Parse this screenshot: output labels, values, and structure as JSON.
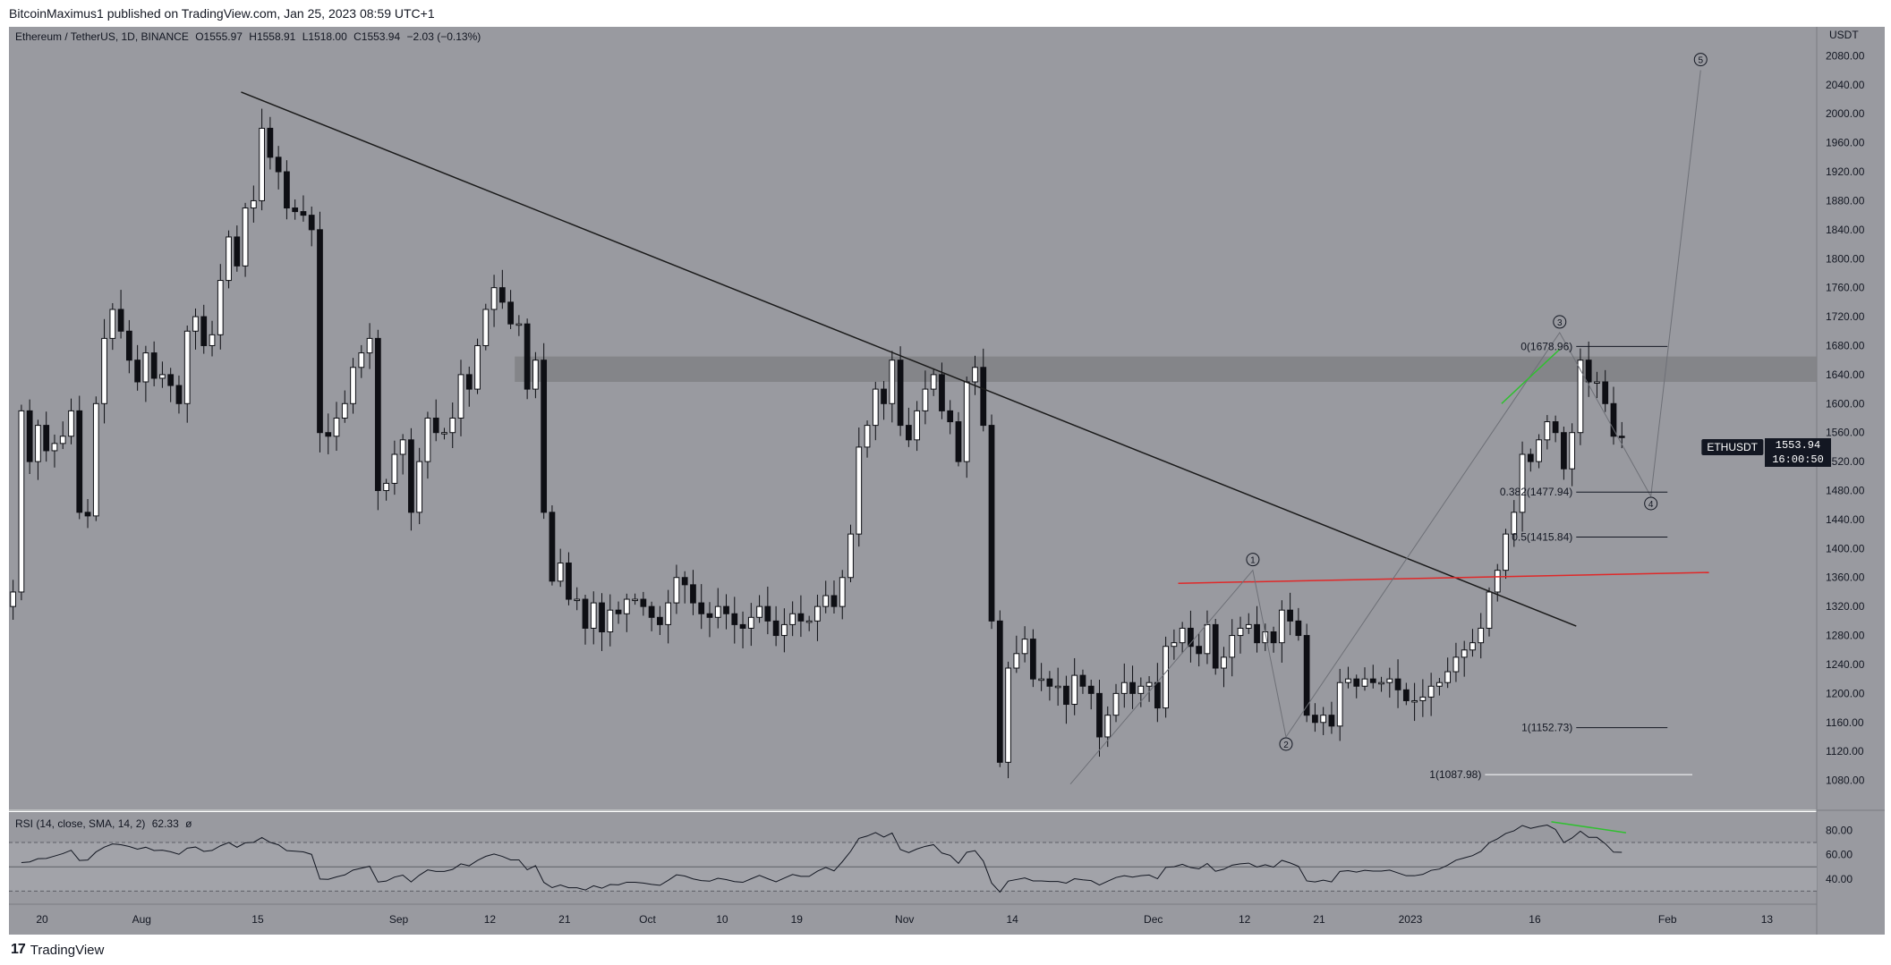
{
  "header": {
    "published": "BitcoinMaximus1 published on TradingView.com, Jan 25, 2023 08:59 UTC+1"
  },
  "footer": {
    "brand": "TradingView"
  },
  "legend": {
    "symbol": "Ethereum / TetherUS, 1D, BINANCE",
    "ohlc": [
      {
        "k": "O",
        "v": "1555.97"
      },
      {
        "k": "H",
        "v": "1558.91"
      },
      {
        "k": "L",
        "v": "1518.00"
      },
      {
        "k": "C",
        "v": "1553.94"
      }
    ],
    "change": "−2.03 (−0.13%)",
    "rsi": "RSI (14, close, SMA, 14, 2)",
    "rsi_value": "62.33",
    "rsi_extra": "ø"
  },
  "price_tag": {
    "symbol": "ETHUSDT",
    "price": "1553.94",
    "countdown": "16:00:50"
  },
  "colors": {
    "chart_bg": "#999aa0",
    "up_candle": "#ffffff",
    "down_candle": "#0e0f14",
    "resistance_zone": "#808185",
    "trendline": "#1a1a1a",
    "support_line": "#e02828",
    "wave_green": "#30c030"
  },
  "chart_data": {
    "type": "candlestick",
    "symbol": "ETHUSDT",
    "interval": "1D",
    "y_axis": {
      "unit": "USDT",
      "ylim": [
        1040,
        2120
      ],
      "ticks": [
        1080,
        1120,
        1160,
        1200,
        1240,
        1280,
        1320,
        1360,
        1400,
        1440,
        1480,
        1520,
        1560,
        1600,
        1640,
        1680,
        1720,
        1760,
        1800,
        1840,
        1880,
        1920,
        1960,
        2000,
        2040,
        2080
      ],
      "tick_labels": [
        "1080.00",
        "1120.00",
        "1160.00",
        "1200.00",
        "1240.00",
        "1280.00",
        "1320.00",
        "1360.00",
        "1400.00",
        "1440.00",
        "1480.00",
        "1520.00",
        "1560.00",
        "1600.00",
        "1640.00",
        "1680.00",
        "1720.00",
        "1760.00",
        "1800.00",
        "1840.00",
        "1880.00",
        "1920.00",
        "1960.00",
        "2000.00",
        "2040.00",
        "2080.00"
      ]
    },
    "x_axis": {
      "start_date": "2022-07-16",
      "end_date": "2023-02-19",
      "ticks": [
        {
          "date": "2022-07-20",
          "label": "20"
        },
        {
          "date": "2022-08-01",
          "label": "Aug"
        },
        {
          "date": "2022-08-15",
          "label": "15"
        },
        {
          "date": "2022-09-01",
          "label": "Sep"
        },
        {
          "date": "2022-09-12",
          "label": "12"
        },
        {
          "date": "2022-09-21",
          "label": "21"
        },
        {
          "date": "2022-10-01",
          "label": "Oct"
        },
        {
          "date": "2022-10-10",
          "label": "10"
        },
        {
          "date": "2022-10-19",
          "label": "19"
        },
        {
          "date": "2022-11-01",
          "label": "Nov"
        },
        {
          "date": "2022-11-14",
          "label": "14"
        },
        {
          "date": "2022-12-01",
          "label": "Dec"
        },
        {
          "date": "2022-12-12",
          "label": "12"
        },
        {
          "date": "2022-12-21",
          "label": "21"
        },
        {
          "date": "2023-01-01",
          "label": "2023"
        },
        {
          "date": "2023-01-16",
          "label": "16"
        },
        {
          "date": "2023-02-01",
          "label": "Feb"
        },
        {
          "date": "2023-02-13",
          "label": "13"
        }
      ]
    },
    "candles_start_date": "2022-07-16",
    "closes": [
      1340,
      1590,
      1520,
      1570,
      1535,
      1545,
      1555,
      1590,
      1450,
      1445,
      1600,
      1690,
      1730,
      1700,
      1660,
      1630,
      1670,
      1635,
      1640,
      1625,
      1600,
      1700,
      1720,
      1680,
      1695,
      1770,
      1830,
      1790,
      1870,
      1880,
      1980,
      1940,
      1920,
      1870,
      1865,
      1860,
      1840,
      1560,
      1555,
      1580,
      1600,
      1650,
      1670,
      1690,
      1480,
      1490,
      1530,
      1550,
      1450,
      1520,
      1580,
      1560,
      1560,
      1580,
      1640,
      1620,
      1680,
      1730,
      1760,
      1740,
      1710,
      1710,
      1620,
      1660,
      1450,
      1355,
      1380,
      1330,
      1330,
      1290,
      1325,
      1285,
      1315,
      1310,
      1330,
      1330,
      1320,
      1305,
      1295,
      1325,
      1360,
      1350,
      1325,
      1310,
      1305,
      1320,
      1310,
      1295,
      1290,
      1305,
      1320,
      1300,
      1280,
      1295,
      1310,
      1300,
      1300,
      1320,
      1335,
      1320,
      1360,
      1420,
      1540,
      1570,
      1620,
      1600,
      1660,
      1570,
      1550,
      1590,
      1620,
      1640,
      1590,
      1575,
      1520,
      1630,
      1650,
      1570,
      1300,
      1105,
      1235,
      1255,
      1275,
      1220,
      1220,
      1210,
      1210,
      1185,
      1225,
      1210,
      1200,
      1140,
      1170,
      1200,
      1215,
      1200,
      1210,
      1215,
      1180,
      1265,
      1270,
      1290,
      1265,
      1255,
      1295,
      1235,
      1250,
      1280,
      1290,
      1295,
      1270,
      1285,
      1270,
      1315,
      1300,
      1280,
      1170,
      1160,
      1170,
      1155,
      1215,
      1220,
      1210,
      1220,
      1215,
      1215,
      1220,
      1205,
      1190,
      1190,
      1195,
      1210,
      1215,
      1230,
      1250,
      1260,
      1270,
      1290,
      1340,
      1370,
      1420,
      1450,
      1530,
      1520,
      1550,
      1575,
      1560,
      1510,
      1560,
      1660,
      1630,
      1630,
      1600,
      1555,
      1554
    ],
    "resistance_zone": [
      1630,
      1665
    ],
    "descending_trendline": [
      {
        "date": "2022-08-13",
        "price": 2030
      },
      {
        "date": "2023-01-21",
        "price": 1293
      }
    ],
    "support_line": [
      {
        "date": "2022-12-04",
        "price": 1352
      },
      {
        "date": "2023-02-06",
        "price": 1367
      }
    ],
    "fibonacci": [
      {
        "label": "0(1678.96)",
        "price": 1678.96
      },
      {
        "label": "0.382(1477.94)",
        "price": 1477.94
      },
      {
        "label": "0.5(1415.84)",
        "price": 1415.84
      },
      {
        "label": "1(1152.73)",
        "price": 1152.73
      },
      {
        "label": "1(1087.98)",
        "price": 1087.98
      }
    ],
    "elliott_waves": [
      {
        "label": "1",
        "date": "2022-12-13",
        "price": 1370
      },
      {
        "label": "2",
        "date": "2022-12-17",
        "price": 1140
      },
      {
        "label": "3",
        "date": "2023-01-19",
        "price": 1698
      },
      {
        "label": "4",
        "date": "2023-01-30",
        "price": 1472
      },
      {
        "label": "5",
        "date": "2023-02-05",
        "price": 2060
      }
    ],
    "rsi": {
      "ylim": [
        20,
        95
      ],
      "ticks": [
        40,
        60,
        80
      ],
      "tick_labels": [
        "40.00",
        "60.00",
        "80.00"
      ],
      "bands": [
        30,
        50,
        70
      ],
      "last": 62.33
    }
  }
}
